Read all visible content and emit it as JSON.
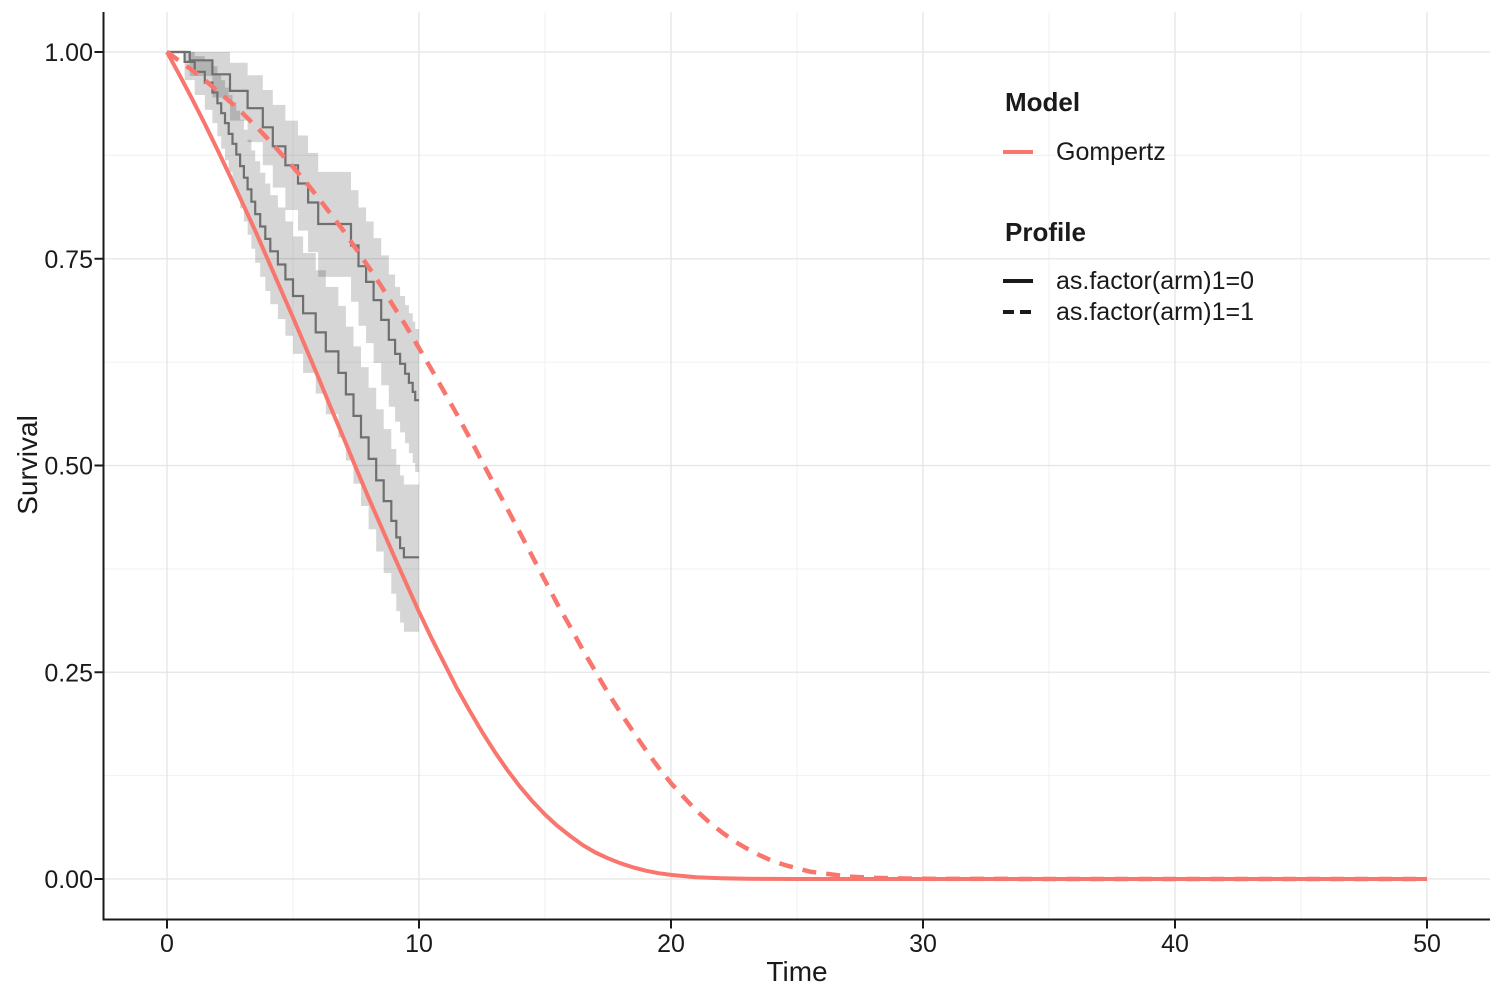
{
  "figure": {
    "kind": "survival-model-fit-plot",
    "background": "#ffffff"
  },
  "axes": {
    "x": {
      "label": "Time",
      "range": [
        0,
        50
      ],
      "tick_labels": [
        "0",
        "10",
        "20",
        "30",
        "40",
        "50"
      ],
      "tick_values": [
        0,
        10,
        20,
        30,
        40,
        50
      ],
      "minor_values": [
        5,
        15,
        25,
        35,
        45
      ]
    },
    "y": {
      "label": "Survival",
      "range": [
        0,
        1
      ],
      "tick_labels": [
        "1.00",
        "0.75",
        "0.50",
        "0.25",
        "0.00"
      ],
      "tick_values": [
        1,
        0.75,
        0.5,
        0.25,
        0
      ],
      "minor_values": [
        0.875,
        0.625,
        0.375,
        0.125
      ]
    }
  },
  "legend": {
    "model_title": "Model",
    "model_items": [
      {
        "label": "Gompertz",
        "color": "#F8766D",
        "style": "solid"
      }
    ],
    "profile_title": "Profile",
    "profile_items": [
      {
        "label": "as.factor(arm)1=0",
        "style": "solid"
      },
      {
        "label": "as.factor(arm)1=1",
        "style": "dashed"
      }
    ]
  },
  "colors": {
    "model_line": "#F8766D",
    "km_line": "#6F6F6F",
    "ribbon": "rgba(0,0,0,0.16)",
    "grid_major": "#E4E4E4",
    "grid_minor": "#F0F0F0",
    "axis": "#1A1A1A",
    "text": "#1A1A1A"
  },
  "chart_data": {
    "type": "line",
    "title": "",
    "xlabel": "Time",
    "ylabel": "Survival",
    "xlim": [
      0,
      50
    ],
    "ylim": [
      0,
      1
    ],
    "grid": "major+minor",
    "legend_position": "inside-top-right",
    "series": [
      {
        "name": "Gompertz model, as.factor(arm)1=0",
        "kind": "model",
        "linestyle": "solid",
        "color": "#F8766D",
        "points": [
          [
            0,
            1
          ],
          [
            0.5,
            0.972
          ],
          [
            1,
            0.943
          ],
          [
            1.5,
            0.913
          ],
          [
            2,
            0.882
          ],
          [
            2.5,
            0.85
          ],
          [
            3,
            0.817
          ],
          [
            3.5,
            0.784
          ],
          [
            4,
            0.749
          ],
          [
            4.5,
            0.714
          ],
          [
            5,
            0.679
          ],
          [
            5.5,
            0.643
          ],
          [
            6,
            0.607
          ],
          [
            6.5,
            0.57
          ],
          [
            7,
            0.534
          ],
          [
            7.5,
            0.497
          ],
          [
            8,
            0.461
          ],
          [
            8.5,
            0.426
          ],
          [
            9,
            0.391
          ],
          [
            9.5,
            0.357
          ],
          [
            10,
            0.323
          ],
          [
            10.5,
            0.291
          ],
          [
            11,
            0.261
          ],
          [
            11.5,
            0.231
          ],
          [
            12,
            0.204
          ],
          [
            12.5,
            0.178
          ],
          [
            13,
            0.154
          ],
          [
            13.5,
            0.132
          ],
          [
            14,
            0.112
          ],
          [
            14.5,
            0.094
          ],
          [
            15,
            0.078
          ],
          [
            15.5,
            0.064
          ],
          [
            16,
            0.052
          ],
          [
            16.5,
            0.041
          ],
          [
            17,
            0.032
          ],
          [
            17.5,
            0.025
          ],
          [
            18,
            0.019
          ],
          [
            18.5,
            0.014
          ],
          [
            19,
            0.01
          ],
          [
            19.5,
            0.007
          ],
          [
            20,
            0.005
          ],
          [
            21,
            0.002
          ],
          [
            22,
            0.001
          ],
          [
            23,
            0.0004
          ],
          [
            24,
            0.0001
          ],
          [
            25,
            0
          ],
          [
            30,
            0
          ],
          [
            40,
            0
          ],
          [
            50,
            0
          ]
        ]
      },
      {
        "name": "Gompertz model, as.factor(arm)1=1",
        "kind": "model",
        "linestyle": "dashed",
        "color": "#F8766D",
        "points": [
          [
            0,
            1
          ],
          [
            0.5,
            0.989
          ],
          [
            1,
            0.978
          ],
          [
            1.5,
            0.966
          ],
          [
            2,
            0.953
          ],
          [
            2.5,
            0.94
          ],
          [
            3,
            0.926
          ],
          [
            3.5,
            0.911
          ],
          [
            4,
            0.895
          ],
          [
            4.5,
            0.878
          ],
          [
            5,
            0.861
          ],
          [
            5.5,
            0.843
          ],
          [
            6,
            0.824
          ],
          [
            6.5,
            0.804
          ],
          [
            7,
            0.784
          ],
          [
            7.5,
            0.762
          ],
          [
            8,
            0.74
          ],
          [
            8.5,
            0.717
          ],
          [
            9,
            0.692
          ],
          [
            9.5,
            0.668
          ],
          [
            10,
            0.642
          ],
          [
            10.5,
            0.616
          ],
          [
            11,
            0.589
          ],
          [
            11.5,
            0.562
          ],
          [
            12,
            0.534
          ],
          [
            12.5,
            0.505
          ],
          [
            13,
            0.476
          ],
          [
            13.5,
            0.448
          ],
          [
            14,
            0.419
          ],
          [
            14.5,
            0.39
          ],
          [
            15,
            0.361
          ],
          [
            15.5,
            0.332
          ],
          [
            16,
            0.305
          ],
          [
            16.5,
            0.277
          ],
          [
            17,
            0.251
          ],
          [
            17.5,
            0.225
          ],
          [
            18,
            0.201
          ],
          [
            18.5,
            0.178
          ],
          [
            19,
            0.156
          ],
          [
            19.5,
            0.135
          ],
          [
            20,
            0.116
          ],
          [
            20.5,
            0.099
          ],
          [
            21,
            0.083
          ],
          [
            21.5,
            0.069
          ],
          [
            22,
            0.057
          ],
          [
            22.5,
            0.046
          ],
          [
            23,
            0.037
          ],
          [
            23.5,
            0.029
          ],
          [
            24,
            0.022
          ],
          [
            24.5,
            0.017
          ],
          [
            25,
            0.013
          ],
          [
            25.5,
            0.009
          ],
          [
            26,
            0.007
          ],
          [
            27,
            0.003
          ],
          [
            28,
            0.0015
          ],
          [
            29,
            0.0007
          ],
          [
            30,
            0.0003
          ],
          [
            35,
            0
          ],
          [
            40,
            0
          ],
          [
            45,
            0
          ],
          [
            50,
            0
          ]
        ]
      },
      {
        "name": "Kaplan-Meier, as.factor(arm)1=0",
        "kind": "km-step",
        "color": "#6F6F6F",
        "steps": [
          [
            0,
            1,
            1,
            1
          ],
          [
            0.7,
            0.988,
            0.966,
            1
          ],
          [
            1.1,
            0.976,
            0.948,
            0.995
          ],
          [
            1.5,
            0.963,
            0.93,
            0.99
          ],
          [
            1.8,
            0.951,
            0.914,
            0.983
          ],
          [
            2,
            0.938,
            0.898,
            0.974
          ],
          [
            2.15,
            0.926,
            0.883,
            0.966
          ],
          [
            2.3,
            0.914,
            0.869,
            0.957
          ],
          [
            2.45,
            0.901,
            0.855,
            0.948
          ],
          [
            2.6,
            0.889,
            0.841,
            0.939
          ],
          [
            2.75,
            0.876,
            0.827,
            0.929
          ],
          [
            2.9,
            0.862,
            0.811,
            0.918
          ],
          [
            3.05,
            0.848,
            0.795,
            0.906
          ],
          [
            3.2,
            0.834,
            0.779,
            0.894
          ],
          [
            3.35,
            0.819,
            0.762,
            0.881
          ],
          [
            3.5,
            0.804,
            0.745,
            0.868
          ],
          [
            3.7,
            0.789,
            0.728,
            0.854
          ],
          [
            3.9,
            0.774,
            0.711,
            0.841
          ],
          [
            4.1,
            0.759,
            0.695,
            0.827
          ],
          [
            4.4,
            0.743,
            0.677,
            0.812
          ],
          [
            4.7,
            0.725,
            0.657,
            0.795
          ],
          [
            5,
            0.705,
            0.635,
            0.777
          ],
          [
            5.4,
            0.684,
            0.612,
            0.757
          ],
          [
            5.9,
            0.661,
            0.587,
            0.736
          ],
          [
            6.3,
            0.638,
            0.562,
            0.716
          ],
          [
            6.8,
            0.612,
            0.534,
            0.693
          ],
          [
            7.1,
            0.586,
            0.506,
            0.668
          ],
          [
            7.4,
            0.56,
            0.478,
            0.644
          ],
          [
            7.7,
            0.534,
            0.451,
            0.619
          ],
          [
            8,
            0.508,
            0.423,
            0.594
          ],
          [
            8.3,
            0.482,
            0.396,
            0.568
          ],
          [
            8.6,
            0.457,
            0.37,
            0.544
          ],
          [
            8.9,
            0.433,
            0.345,
            0.52
          ],
          [
            9.1,
            0.413,
            0.324,
            0.501
          ],
          [
            9.25,
            0.4,
            0.31,
            0.488
          ],
          [
            9.4,
            0.389,
            0.299,
            0.477
          ],
          [
            10,
            0.389,
            0.299,
            0.477
          ]
        ]
      },
      {
        "name": "Kaplan-Meier, as.factor(arm)1=1",
        "kind": "km-step",
        "color": "#6F6F6F",
        "steps": [
          [
            0,
            1,
            1,
            1
          ],
          [
            0.9,
            0.99,
            0.971,
            1
          ],
          [
            1.8,
            0.973,
            0.945,
            1
          ],
          [
            2.5,
            0.953,
            0.917,
            0.987
          ],
          [
            3.2,
            0.932,
            0.891,
            0.972
          ],
          [
            3.8,
            0.909,
            0.863,
            0.954
          ],
          [
            4.2,
            0.886,
            0.836,
            0.936
          ],
          [
            4.7,
            0.863,
            0.809,
            0.917
          ],
          [
            5.2,
            0.841,
            0.784,
            0.899
          ],
          [
            5.6,
            0.818,
            0.758,
            0.878
          ],
          [
            6,
            0.792,
            0.728,
            0.855
          ],
          [
            7.3,
            0.766,
            0.698,
            0.833
          ],
          [
            7.6,
            0.741,
            0.669,
            0.812
          ],
          [
            7.9,
            0.722,
            0.648,
            0.795
          ],
          [
            8.2,
            0.7,
            0.624,
            0.775
          ],
          [
            8.5,
            0.676,
            0.597,
            0.754
          ],
          [
            8.8,
            0.652,
            0.571,
            0.731
          ],
          [
            9.05,
            0.635,
            0.553,
            0.716
          ],
          [
            9.25,
            0.623,
            0.54,
            0.705
          ],
          [
            9.45,
            0.611,
            0.527,
            0.694
          ],
          [
            9.6,
            0.6,
            0.515,
            0.684
          ],
          [
            9.75,
            0.589,
            0.503,
            0.674
          ],
          [
            9.85,
            0.579,
            0.492,
            0.665
          ],
          [
            10,
            0.579,
            0.492,
            0.665
          ]
        ]
      }
    ]
  }
}
